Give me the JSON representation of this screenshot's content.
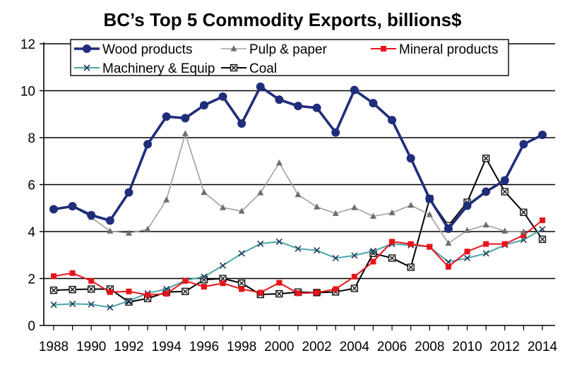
{
  "chart_data": {
    "type": "line",
    "title": "BC’s Top 5 Commodity Exports,  billions$",
    "xlabel": "",
    "ylabel": "",
    "ylim": [
      0,
      12
    ],
    "yticks": [
      0,
      2,
      4,
      6,
      8,
      10,
      12
    ],
    "xlim": [
      1988,
      2014
    ],
    "xticks": [
      1988,
      1990,
      1992,
      1994,
      1996,
      1998,
      2000,
      2002,
      2004,
      2006,
      2008,
      2010,
      2012,
      2014
    ],
    "grid": "horizontal",
    "legend_position": "top",
    "x": [
      1988,
      1989,
      1990,
      1991,
      1992,
      1993,
      1994,
      1995,
      1996,
      1997,
      1998,
      1999,
      2000,
      2001,
      2002,
      2003,
      2004,
      2005,
      2006,
      2007,
      2008,
      2009,
      2010,
      2011,
      2012,
      2013,
      2014
    ],
    "series": [
      {
        "name": "Wood products",
        "color": "#1f2d7a",
        "marker": "circle",
        "values": [
          4.95,
          5.08,
          4.7,
          4.47,
          5.67,
          7.72,
          8.9,
          8.83,
          9.38,
          9.75,
          8.6,
          10.17,
          9.62,
          9.35,
          9.27,
          8.22,
          10.03,
          9.47,
          8.75,
          7.12,
          5.4,
          4.12,
          5.1,
          5.7,
          6.18,
          7.72,
          8.12
        ]
      },
      {
        "name": "Pulp & paper",
        "color": "#a0a0a0",
        "marker": "triangle",
        "values": [
          4.95,
          5.08,
          4.6,
          4.02,
          3.93,
          4.1,
          5.35,
          8.17,
          5.67,
          5.02,
          4.87,
          5.65,
          6.92,
          5.57,
          5.05,
          4.77,
          5.02,
          4.65,
          4.8,
          5.12,
          4.72,
          3.5,
          4.05,
          4.28,
          4.02,
          3.98,
          null
        ]
      },
      {
        "name": "Mineral products",
        "color": "#e8141b",
        "marker": "square",
        "values": [
          2.1,
          2.23,
          1.9,
          1.42,
          1.45,
          1.3,
          1.35,
          1.9,
          1.65,
          1.8,
          1.55,
          1.4,
          1.82,
          1.37,
          1.4,
          1.55,
          2.08,
          2.72,
          3.57,
          3.47,
          3.35,
          2.5,
          3.15,
          3.47,
          3.47,
          3.85,
          4.48
        ]
      },
      {
        "name": "Machinery & Equip",
        "color": "#4aa5a8",
        "marker": "x",
        "values": [
          0.88,
          0.92,
          0.9,
          0.77,
          1.05,
          1.37,
          1.55,
          1.92,
          2.08,
          2.55,
          3.07,
          3.48,
          3.57,
          3.27,
          3.2,
          2.87,
          2.98,
          3.17,
          3.47,
          3.42,
          3.35,
          2.7,
          2.87,
          3.07,
          3.43,
          3.65,
          4.1
        ]
      },
      {
        "name": "Coal",
        "color": "#000000",
        "marker": "xbox",
        "values": [
          1.5,
          1.53,
          1.55,
          1.55,
          1.0,
          1.15,
          1.42,
          1.45,
          1.95,
          2.0,
          1.8,
          1.32,
          1.35,
          1.42,
          1.4,
          1.43,
          1.58,
          3.07,
          2.87,
          2.48,
          5.4,
          4.25,
          5.25,
          7.12,
          5.7,
          4.82,
          3.67
        ]
      }
    ]
  }
}
